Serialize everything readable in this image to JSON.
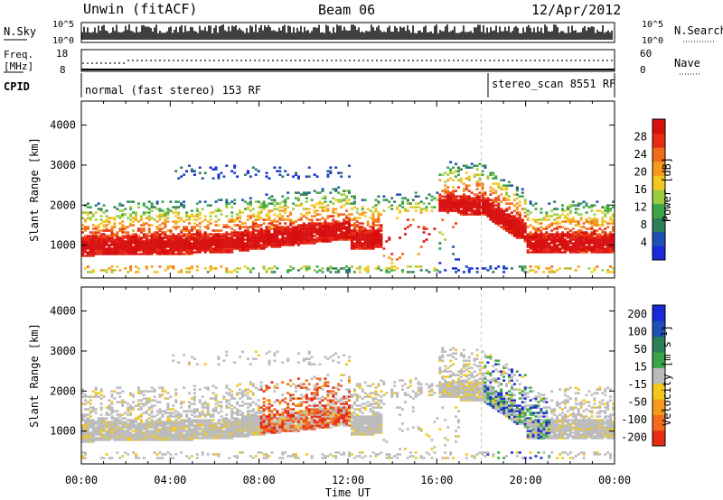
{
  "header": {
    "site": "Unwin (fitACF)",
    "beam": "Beam 06",
    "date": "12/Apr/2012"
  },
  "status_panels": {
    "nsky_label": "N.Sky",
    "nsearch_label": "N.Search",
    "nsky_ticks": [
      "10^5",
      "10^0"
    ],
    "nsearch_ticks": [
      "10^5",
      "10^0"
    ],
    "freq_label_1": "Freq.",
    "freq_label_2": "[MHz]",
    "freq_ticks": [
      "18",
      "8"
    ],
    "nave_label": "Nave",
    "nave_ticks": [
      "60",
      "0"
    ],
    "cpid_label": "CPID",
    "cpid_segments": [
      {
        "text": "normal (fast stereo) 153 RF",
        "start_hour": 0,
        "end_hour": 18
      },
      {
        "text": "stereo_scan 8551 RF",
        "start_hour": 18,
        "end_hour": 24
      }
    ]
  },
  "chart_data": [
    {
      "type": "heatmap",
      "title": "",
      "xlabel": "",
      "ylabel": "Slant Range [km]",
      "xlim": [
        0,
        24
      ],
      "ylim": [
        180,
        4600
      ],
      "y_ticks": [
        1000,
        2000,
        3000,
        4000
      ],
      "colorbar": {
        "label": "Power [dB]",
        "ticks": [
          "4",
          "8",
          "12",
          "16",
          "20",
          "24",
          "28"
        ],
        "colors": [
          "#1b2ad8",
          "#1e4fb4",
          "#2f7e5a",
          "#3aa648",
          "#9ccd3e",
          "#f2c81e",
          "#f79a1c",
          "#f26a1a",
          "#e82b15",
          "#d80f0f"
        ]
      },
      "x_ticks": [
        "00:00",
        "04:00",
        "08:00",
        "12:00",
        "16:00",
        "20:00",
        "00:00"
      ],
      "marker_hour": 18
    },
    {
      "type": "heatmap",
      "title": "",
      "xlabel": "Time UT",
      "ylabel": "Slant Range [km]",
      "xlim": [
        0,
        24
      ],
      "ylim": [
        180,
        4600
      ],
      "y_ticks": [
        1000,
        2000,
        3000,
        4000
      ],
      "colorbar": {
        "label": "Velocity [m s^-1]",
        "ticks": [
          "200",
          "100",
          "50",
          "15",
          "-15",
          "-50",
          "-100",
          "-200"
        ],
        "colors": [
          "#1b2ad8",
          "#1e4fb4",
          "#2f7e5a",
          "#3aa648",
          "#bbbbbb",
          "#f2c81e",
          "#f79a1c",
          "#f26a1a",
          "#e82b15"
        ]
      },
      "x_ticks": [
        "00:00",
        "04:00",
        "08:00",
        "12:00",
        "16:00",
        "20:00",
        "00:00"
      ],
      "marker_hour": 18
    }
  ]
}
